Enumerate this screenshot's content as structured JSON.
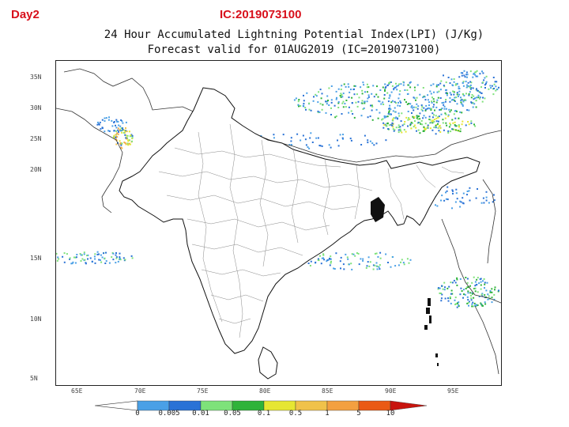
{
  "header": {
    "day_label": "Day2",
    "ic_label": "IC:2019073100"
  },
  "title": {
    "line1": "24 Hour Accumulated Lightning Potential Index(LPI) (J/Kg)",
    "line2": "Forecast valid for 01AUG2019 (IC=2019073100)"
  },
  "axes": {
    "lat_ticks": [
      "35N",
      "30N",
      "25N",
      "20N",
      "15N",
      "10N",
      "5N"
    ],
    "lon_ticks": [
      "65E",
      "70E",
      "75E",
      "80E",
      "85E",
      "90E",
      "95E"
    ]
  },
  "legend": {
    "thresholds": [
      "0",
      "0.005",
      "0.01",
      "0.05",
      "0.1",
      "0.5",
      "1",
      "5",
      "10"
    ],
    "colors": [
      "#4aa0e6",
      "#2a72d6",
      "#7ee27a",
      "#2fb33a",
      "#e6e632",
      "#f0c24a",
      "#f3a040",
      "#ea5a14",
      "#c8140e"
    ]
  }
}
